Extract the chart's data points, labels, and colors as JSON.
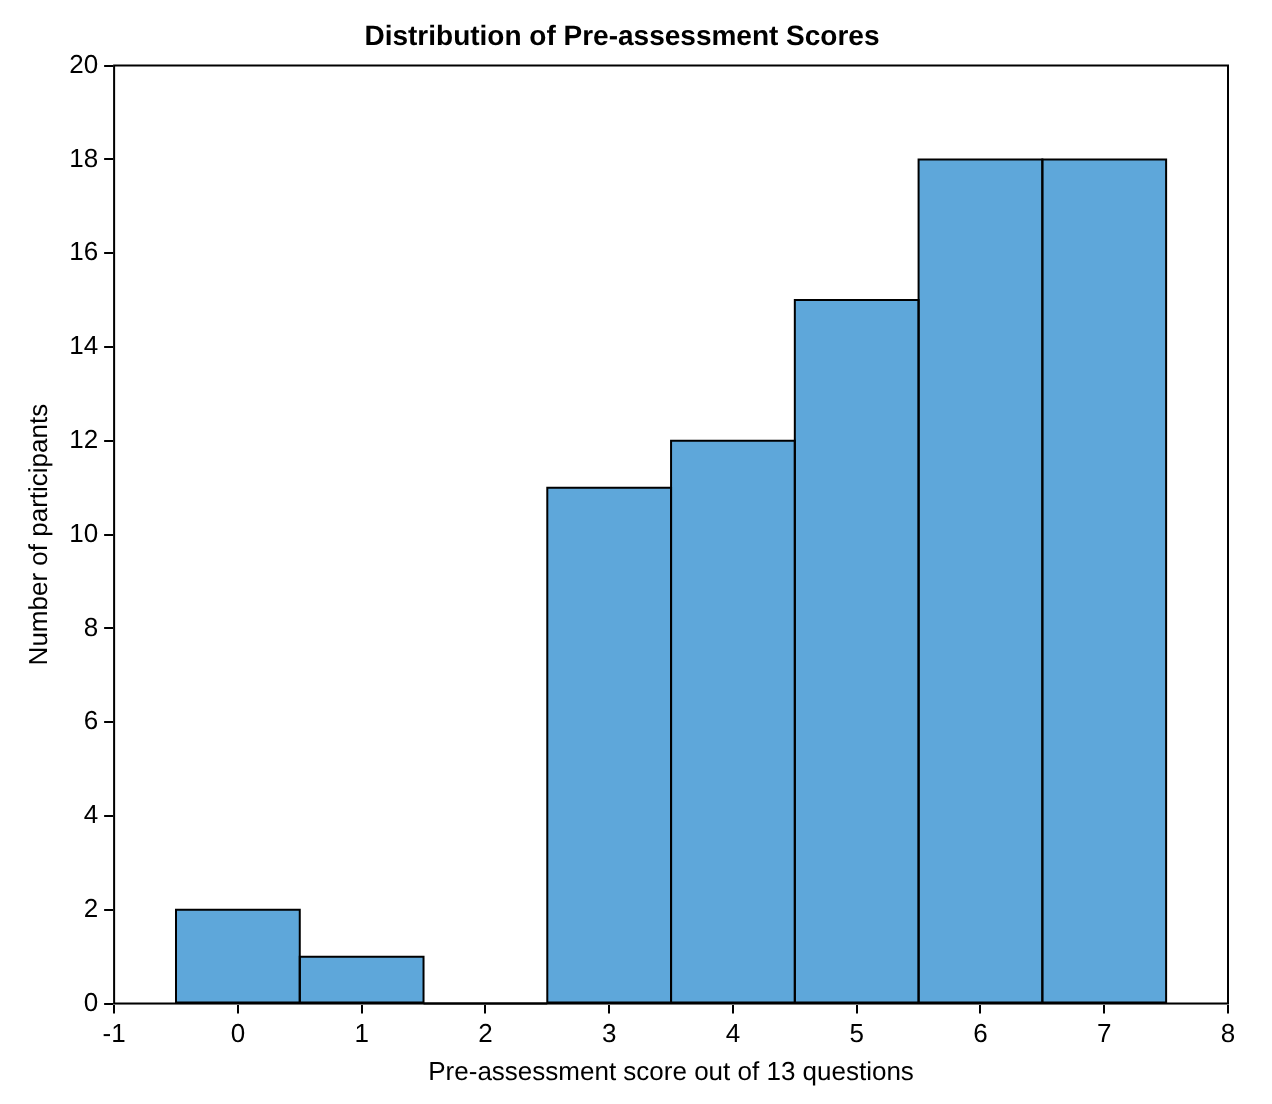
{
  "chart_data": {
    "type": "histogram",
    "title": "Distribution of Pre-assessment Scores",
    "xlabel": "Pre-assessment score out of 13 questions",
    "ylabel": "Number of participants",
    "bins": [
      -0.5,
      0.5,
      1.5,
      2.5,
      3.5,
      4.5,
      5.5,
      6.5,
      7.5
    ],
    "values": [
      2,
      1,
      0,
      11,
      12,
      15,
      18,
      18
    ],
    "color": "#5ea7da",
    "xlim": [
      -1,
      8
    ],
    "xticks": [
      -1,
      0,
      1,
      2,
      3,
      4,
      5,
      6,
      7,
      8
    ],
    "ylim": [
      0,
      20
    ],
    "yticks": [
      0,
      2,
      4,
      6,
      8,
      10,
      12,
      14,
      16,
      18,
      20
    ],
    "grid": false,
    "legend": false
  }
}
